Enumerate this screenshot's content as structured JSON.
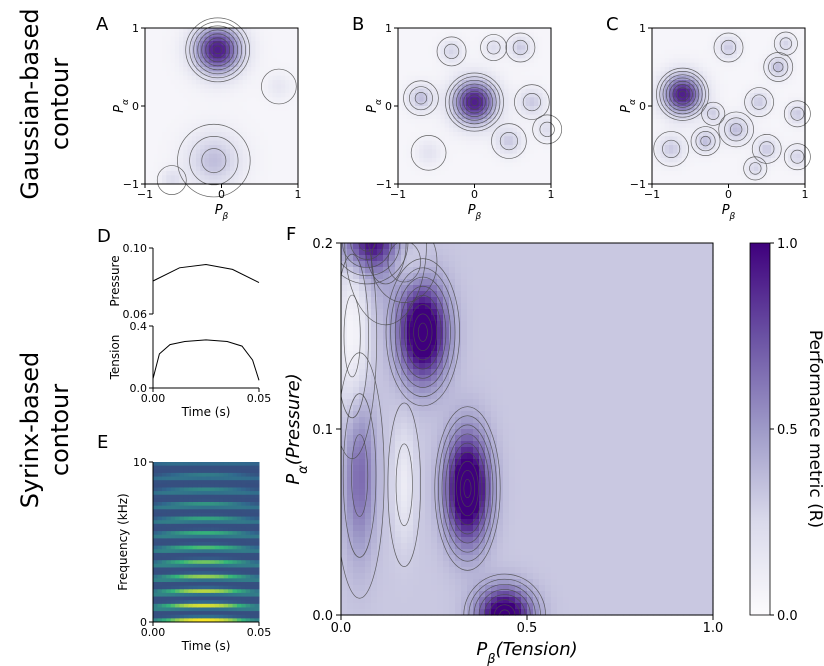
{
  "figure": {
    "row_labels": {
      "top": [
        "Gaussian-based",
        "contour"
      ],
      "bottom": [
        "Syrinx-based",
        "contour"
      ]
    }
  },
  "chart_data": [
    {
      "panel": "A",
      "type": "heatmap",
      "xlabel_symbol": "P",
      "xlabel_sub": "β",
      "ylabel_symbol": "P",
      "ylabel_sub": "α",
      "xlim": [
        -1,
        1
      ],
      "ylim": [
        -1,
        1
      ],
      "xticks": [
        "−1",
        "0",
        "1"
      ],
      "yticks": [
        "−1",
        "0",
        "1"
      ],
      "peaks": [
        {
          "x": -0.05,
          "y": 0.72,
          "amp": 1.0,
          "width": 0.22
        },
        {
          "x": -0.1,
          "y": -0.7,
          "amp": 0.35,
          "width": 0.25
        },
        {
          "x": 0.75,
          "y": 0.25,
          "amp": 0.12,
          "width": 0.12
        },
        {
          "x": -0.65,
          "y": -0.95,
          "amp": 0.18,
          "width": 0.1
        }
      ]
    },
    {
      "panel": "B",
      "type": "heatmap",
      "xlabel_symbol": "P",
      "xlabel_sub": "β",
      "ylabel_symbol": "P",
      "ylabel_sub": "α",
      "xlim": [
        -1,
        1
      ],
      "ylim": [
        -1,
        1
      ],
      "xticks": [
        "−1",
        "0",
        "1"
      ],
      "yticks": [
        "−1",
        "0",
        "1"
      ],
      "peaks": [
        {
          "x": 0.0,
          "y": 0.05,
          "amp": 1.0,
          "width": 0.2
        },
        {
          "x": -0.7,
          "y": 0.1,
          "amp": 0.35,
          "width": 0.12
        },
        {
          "x": -0.3,
          "y": 0.7,
          "amp": 0.25,
          "width": 0.1
        },
        {
          "x": 0.25,
          "y": 0.75,
          "amp": 0.2,
          "width": 0.09
        },
        {
          "x": 0.6,
          "y": 0.75,
          "amp": 0.3,
          "width": 0.1
        },
        {
          "x": 0.75,
          "y": 0.05,
          "amp": 0.3,
          "width": 0.12
        },
        {
          "x": 0.45,
          "y": -0.45,
          "amp": 0.3,
          "width": 0.12
        },
        {
          "x": -0.6,
          "y": -0.6,
          "amp": 0.15,
          "width": 0.12
        },
        {
          "x": 0.95,
          "y": -0.3,
          "amp": 0.2,
          "width": 0.1
        }
      ]
    },
    {
      "panel": "C",
      "type": "heatmap",
      "xlabel_symbol": "P",
      "xlabel_sub": "β",
      "ylabel_symbol": "P",
      "ylabel_sub": "α",
      "xlim": [
        -1,
        1
      ],
      "ylim": [
        -1,
        1
      ],
      "xticks": [
        "−1",
        "0",
        "1"
      ],
      "yticks": [
        "−1",
        "0",
        "1"
      ],
      "peaks": [
        {
          "x": -0.6,
          "y": 0.15,
          "amp": 1.0,
          "width": 0.18
        },
        {
          "x": 0.0,
          "y": 0.75,
          "amp": 0.3,
          "width": 0.1
        },
        {
          "x": 0.65,
          "y": 0.5,
          "amp": 0.35,
          "width": 0.1
        },
        {
          "x": 0.75,
          "y": 0.8,
          "amp": 0.25,
          "width": 0.08
        },
        {
          "x": 0.4,
          "y": 0.05,
          "amp": 0.3,
          "width": 0.1
        },
        {
          "x": 0.1,
          "y": -0.3,
          "amp": 0.35,
          "width": 0.12
        },
        {
          "x": -0.3,
          "y": -0.45,
          "amp": 0.35,
          "width": 0.1
        },
        {
          "x": 0.5,
          "y": -0.55,
          "amp": 0.3,
          "width": 0.1
        },
        {
          "x": 0.9,
          "y": -0.1,
          "amp": 0.3,
          "width": 0.09
        },
        {
          "x": -0.2,
          "y": -0.1,
          "amp": 0.25,
          "width": 0.08
        },
        {
          "x": -0.75,
          "y": -0.55,
          "amp": 0.3,
          "width": 0.12
        },
        {
          "x": 0.35,
          "y": -0.8,
          "amp": 0.25,
          "width": 0.08
        },
        {
          "x": 0.9,
          "y": -0.65,
          "amp": 0.25,
          "width": 0.09
        }
      ]
    },
    {
      "panel": "D",
      "type": "line",
      "subplots": [
        {
          "ylabel": "Pressure",
          "ylim": [
            0.06,
            0.1
          ],
          "yticks": [
            "0.06",
            "0.10"
          ],
          "x": [
            0,
            0.0125,
            0.025,
            0.0375,
            0.05
          ],
          "y": [
            0.08,
            0.088,
            0.09,
            0.087,
            0.079
          ]
        },
        {
          "ylabel": "Tension",
          "ylim": [
            0.0,
            0.4
          ],
          "yticks": [
            "0.0",
            "0.4"
          ],
          "x": [
            0,
            0.003,
            0.008,
            0.015,
            0.025,
            0.035,
            0.042,
            0.047,
            0.05
          ],
          "y": [
            0.06,
            0.22,
            0.28,
            0.3,
            0.31,
            0.3,
            0.27,
            0.18,
            0.05
          ]
        }
      ],
      "xlabel": "Time (s)",
      "xlim": [
        0,
        0.05
      ],
      "xticks": [
        "0.00",
        "0.05"
      ]
    },
    {
      "panel": "E",
      "type": "heatmap",
      "xlabel": "Time (s)",
      "ylabel": "Frequency (kHz)",
      "xlim": [
        0,
        0.05
      ],
      "ylim": [
        0,
        10
      ],
      "xticks": [
        "0.00",
        "0.05"
      ],
      "yticks": [
        "0",
        "10"
      ],
      "harmonic_spacing_khz": 0.9,
      "colors": [
        "#440154",
        "#31688e",
        "#35b779",
        "#fde725"
      ]
    },
    {
      "panel": "F",
      "type": "heatmap",
      "xlabel_symbol": "P",
      "xlabel_sub": "β",
      "xlabel_paren": "(Tension)",
      "ylabel_symbol": "P",
      "ylabel_sub": "α",
      "ylabel_paren": "(Pressure)",
      "xlim": [
        0,
        1
      ],
      "ylim": [
        0,
        0.2
      ],
      "xticks": [
        "0.0",
        "0.5",
        "1.0"
      ],
      "yticks": [
        "0.0",
        "0.1",
        "0.2"
      ],
      "colorbar": {
        "label": "Performance metric (R)",
        "range": [
          0,
          1
        ],
        "ticks": [
          "0.0",
          "0.5",
          "1.0"
        ],
        "colors": [
          "#fcfbfd",
          "#9e9ac8",
          "#3f007d"
        ]
      },
      "peaks": [
        {
          "x": 0.22,
          "y": 0.152,
          "amp": 0.9,
          "sx": 0.045,
          "sy": 0.018
        },
        {
          "x": 0.34,
          "y": 0.068,
          "amp": 0.95,
          "sx": 0.04,
          "sy": 0.02
        },
        {
          "x": 0.44,
          "y": 0.0,
          "amp": 0.85,
          "sx": 0.05,
          "sy": 0.01
        },
        {
          "x": 0.07,
          "y": 0.2,
          "amp": 0.5,
          "sx": 0.05,
          "sy": 0.01
        },
        {
          "x": 0.05,
          "y": 0.075,
          "amp": 0.35,
          "sx": 0.03,
          "sy": 0.03
        },
        {
          "x": 0.12,
          "y": 0.2,
          "amp": 0.25,
          "sx": 0.05,
          "sy": 0.02
        }
      ],
      "troughs": [
        {
          "x": 0.03,
          "y": 0.15,
          "amp": 0.28,
          "sx": 0.03,
          "sy": 0.03
        },
        {
          "x": 0.17,
          "y": 0.19,
          "amp": 0.2,
          "sx": 0.04,
          "sy": 0.01
        },
        {
          "x": 0.17,
          "y": 0.07,
          "amp": 0.2,
          "sx": 0.02,
          "sy": 0.02
        }
      ],
      "baseline": 0.32
    }
  ]
}
